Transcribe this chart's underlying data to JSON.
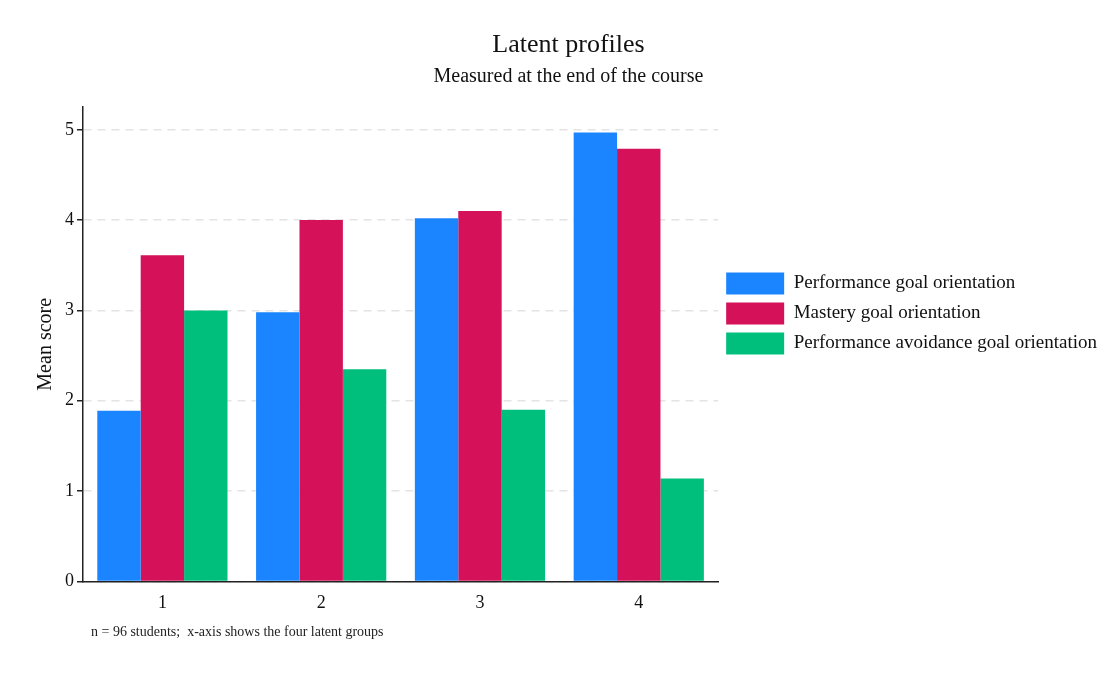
{
  "chart_data": {
    "type": "bar",
    "title": "Latent profiles",
    "subtitle": "Measured at the end of the course",
    "ylabel": "Mean score",
    "categories": [
      "1",
      "2",
      "3",
      "4"
    ],
    "series": [
      {
        "name": "Performance goal orientation",
        "color": "#1a85ff",
        "values": [
          1.89,
          2.98,
          4.02,
          4.97
        ]
      },
      {
        "name": "Mastery goal orientation",
        "color": "#d41159",
        "values": [
          3.61,
          4.0,
          4.1,
          4.79
        ]
      },
      {
        "name": "Performance avoidance goal orientation",
        "color": "#00bf7d",
        "values": [
          3.0,
          2.35,
          1.9,
          1.14
        ]
      }
    ],
    "ylim": [
      0,
      5.25
    ],
    "yticks": [
      0,
      1,
      2,
      3,
      4,
      5
    ],
    "grid": "y",
    "legend": "right",
    "annotations": [
      "n = 96 students;  x-axis shows the four latent groups"
    ]
  }
}
